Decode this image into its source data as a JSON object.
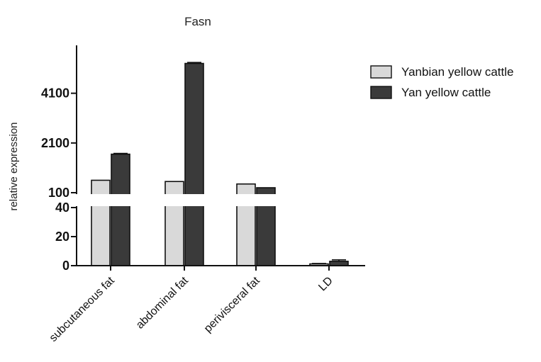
{
  "chart_data": {
    "type": "bar",
    "title": "Fasn",
    "xlabel": "",
    "ylabel": "relative expression",
    "categories": [
      "subcutaneous fat",
      "abdominal fat",
      "perivisceral fat",
      "LD"
    ],
    "series": [
      {
        "name": "Yanbian  yellow cattle",
        "color": "#d9d9d9",
        "values": [
          600,
          550,
          450,
          1.2
        ],
        "errors": [
          0,
          0,
          0,
          0.3
        ]
      },
      {
        "name": "Yan yellow cattle",
        "color": "#3a3a3a",
        "values": [
          1650,
          5300,
          300,
          3.0
        ],
        "errors": [
          30,
          40,
          0,
          1.0
        ]
      }
    ],
    "y_axis_break": {
      "lower_segment": {
        "ylim": [
          0,
          40
        ],
        "ticks": [
          0,
          20,
          40
        ]
      },
      "upper_segment": {
        "ylim": [
          100,
          5800
        ],
        "ticks": [
          100,
          2100,
          4100
        ]
      }
    },
    "legend_position": "top-right",
    "grid": false
  }
}
